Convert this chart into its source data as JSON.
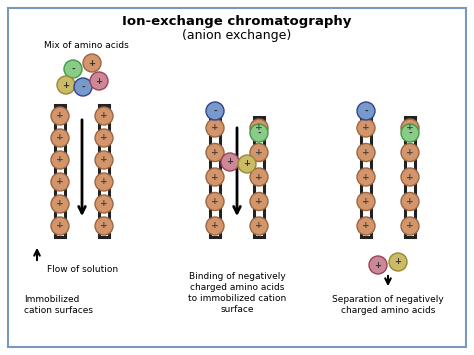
{
  "title_line1": "Ion-exchange chromatography",
  "title_line2": "(anion exchange)",
  "border_color": "#7799bb",
  "salmon_color": "#d4956a",
  "salmon_edge": "#996644",
  "green_color": "#88cc88",
  "green_edge": "#449944",
  "blue_color": "#7799cc",
  "blue_edge": "#334488",
  "pink_color": "#cc8899",
  "pink_edge": "#994455",
  "yellow_color": "#ccbb66",
  "yellow_edge": "#998833",
  "dark_color": "#222222",
  "panel1_label1": "Mix of amino acids",
  "panel1_label2": "Flow of solution",
  "panel1_label3": "Immobilized\ncation surfaces",
  "panel2_label": "Binding of negatively\ncharged amino acids\nto immobilized cation\nsurface",
  "panel3_label": "Separation of negatively\ncharged amino acids"
}
